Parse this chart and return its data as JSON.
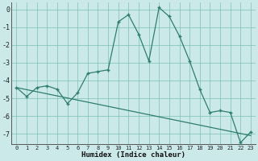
{
  "xlabel": "Humidex (Indice chaleur)",
  "background_color": "#cce9ea",
  "grid_color": "#7bbfb8",
  "line_color": "#2e7d6e",
  "marker_color": "#2e7d6e",
  "xlim": [
    -0.5,
    23.5
  ],
  "ylim": [
    -7.6,
    0.4
  ],
  "yticks": [
    0,
    -1,
    -2,
    -3,
    -4,
    -5,
    -6,
    -7
  ],
  "xticks": [
    0,
    1,
    2,
    3,
    4,
    5,
    6,
    7,
    8,
    9,
    10,
    11,
    12,
    13,
    14,
    15,
    16,
    17,
    18,
    19,
    20,
    21,
    22,
    23
  ],
  "curve1_x": [
    0,
    1,
    2,
    3,
    4,
    5,
    6,
    7,
    8,
    9,
    10,
    11,
    12,
    13,
    14,
    15,
    16,
    17,
    18,
    19,
    20,
    21,
    22,
    23
  ],
  "curve1_y": [
    -4.4,
    -4.9,
    -4.4,
    -4.3,
    -4.5,
    -5.3,
    -4.7,
    -3.6,
    -3.5,
    -3.4,
    -0.7,
    -0.3,
    -1.4,
    -2.9,
    0.1,
    -0.4,
    -1.5,
    -2.9,
    -4.5,
    -5.8,
    -5.7,
    -5.8,
    -7.5,
    -6.9
  ],
  "curve2_x": [
    0,
    23
  ],
  "curve2_y": [
    -4.4,
    -7.1
  ]
}
